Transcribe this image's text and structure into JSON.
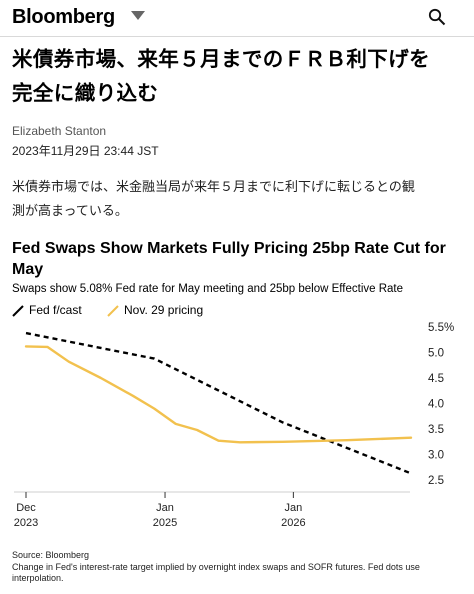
{
  "header": {
    "brand": "Bloomberg",
    "menu_icon": "caret-down-icon",
    "search_icon": "search-icon"
  },
  "article": {
    "headline_line1": "米債券市場、来年５月までのＦＲＢ利下げを",
    "headline_line2": "完全に織り込む",
    "author": "Elizabeth Stanton",
    "date": "2023年11月29日 23:44 JST",
    "body_line1": "米債券市場では、米金融当局が来年５月までに利下げに転じるとの観",
    "body_line2": "測が高まっている。"
  },
  "chart": {
    "title": "Fed Swaps Show Markets Fully Pricing 25bp Rate Cut for May",
    "subtitle": "Swaps show 5.08% Fed rate for May meeting and 25bp below Effective Rate",
    "source": "Source: Bloomberg",
    "note": "Change in Fed's interest-rate target implied by overnight index swaps and SOFR futures. Fed dots use interpolation."
  },
  "chart_data": {
    "type": "line",
    "title": "Fed Swaps Show Markets Fully Pricing 25bp Rate Cut for May",
    "subtitle": "Swaps show 5.08% Fed rate for May meeting and 25bp below Effective Rate",
    "ylim": [
      2.5,
      5.5
    ],
    "yticks": [
      5.5,
      5.0,
      4.5,
      4.0,
      3.5,
      3.0,
      2.5
    ],
    "ytick_labels": [
      "5.5%",
      "5.0",
      "4.5",
      "4.0",
      "3.5",
      "3.0",
      "2.5"
    ],
    "xticks": [
      {
        "x": "2023-12",
        "line1": "Dec",
        "line2": "2023"
      },
      {
        "x": "2025-01",
        "line1": "Jan",
        "line2": "2025"
      },
      {
        "x": "2026-01",
        "line1": "Jan",
        "line2": "2026"
      }
    ],
    "legend_position": "top-left",
    "series": [
      {
        "name": "Fed f/cast",
        "color": "#000000",
        "style": "dashed",
        "points": [
          {
            "x": "2023-12",
            "y": 5.38
          },
          {
            "x": "2024-12",
            "y": 4.88
          },
          {
            "x": "2025-12",
            "y": 3.63
          },
          {
            "x": "2026-12",
            "y": 2.63
          }
        ]
      },
      {
        "name": "Nov. 29 pricing",
        "color": "#f2c14e",
        "style": "solid",
        "points": [
          {
            "x": "2023-12",
            "y": 5.12
          },
          {
            "x": "2024-02",
            "y": 5.11
          },
          {
            "x": "2024-04",
            "y": 4.82
          },
          {
            "x": "2024-07",
            "y": 4.5
          },
          {
            "x": "2024-10",
            "y": 4.15
          },
          {
            "x": "2024-12",
            "y": 3.9
          },
          {
            "x": "2025-02",
            "y": 3.6
          },
          {
            "x": "2025-04",
            "y": 3.48
          },
          {
            "x": "2025-06",
            "y": 3.27
          },
          {
            "x": "2025-08",
            "y": 3.24
          },
          {
            "x": "2025-12",
            "y": 3.25
          },
          {
            "x": "2026-06",
            "y": 3.28
          },
          {
            "x": "2026-12",
            "y": 3.33
          }
        ]
      }
    ]
  }
}
